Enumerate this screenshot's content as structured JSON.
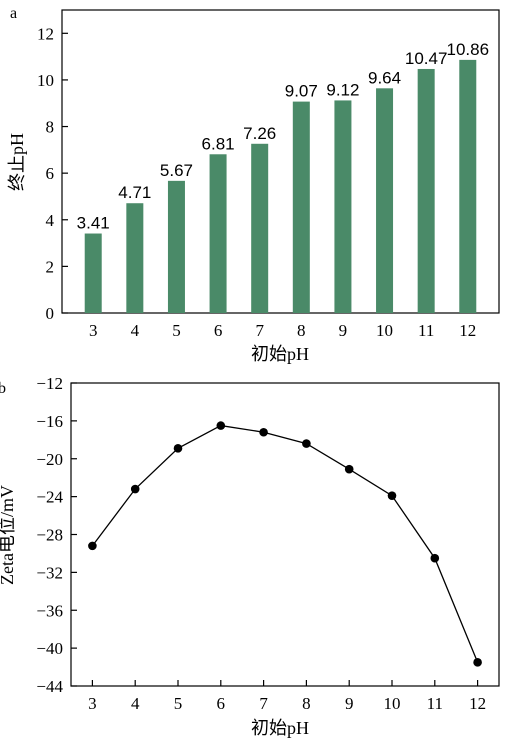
{
  "colors": {
    "bar": "#4a8a68",
    "line": "#000000",
    "marker": "#000000"
  },
  "chart_data": [
    {
      "type": "bar",
      "panel_label": "a",
      "xlabel": "初始pH",
      "ylabel": "终止pH",
      "categories": [
        "3",
        "4",
        "5",
        "6",
        "7",
        "8",
        "9",
        "10",
        "11",
        "12"
      ],
      "values": [
        3.41,
        4.71,
        5.67,
        6.81,
        7.26,
        9.07,
        9.12,
        9.64,
        10.47,
        10.86
      ],
      "data_labels": [
        "3.41",
        "4.71",
        "5.67",
        "6.81",
        "7.26",
        "9.07",
        "9.12",
        "9.64",
        "10.47",
        "10.86"
      ],
      "ylim": [
        0,
        13
      ],
      "yticks": [
        0,
        2,
        4,
        6,
        8,
        10,
        12
      ],
      "ytick_labels": [
        "0",
        "2",
        "4",
        "6",
        "8",
        "10",
        "12"
      ],
      "grid": false
    },
    {
      "type": "line",
      "panel_label": "b",
      "xlabel": "初始pH",
      "ylabel": "Zeta电位/mV",
      "x": [
        3,
        4,
        5,
        6,
        7,
        8,
        9,
        10,
        11,
        12
      ],
      "xtick_labels": [
        "3",
        "4",
        "5",
        "6",
        "7",
        "8",
        "9",
        "10",
        "11",
        "12"
      ],
      "y": [
        -29.2,
        -23.2,
        -18.9,
        -16.5,
        -17.2,
        -18.4,
        -21.1,
        -23.9,
        -30.5,
        -41.5
      ],
      "ylim": [
        -44,
        -12
      ],
      "yticks": [
        -12,
        -16,
        -20,
        -24,
        -28,
        -32,
        -36,
        -40,
        -44
      ],
      "ytick_labels": [
        "−12",
        "−16",
        "−20",
        "−24",
        "−28",
        "−32",
        "−36",
        "−40",
        "−44"
      ],
      "xlim": [
        2.5,
        12.5
      ],
      "grid": false
    }
  ]
}
